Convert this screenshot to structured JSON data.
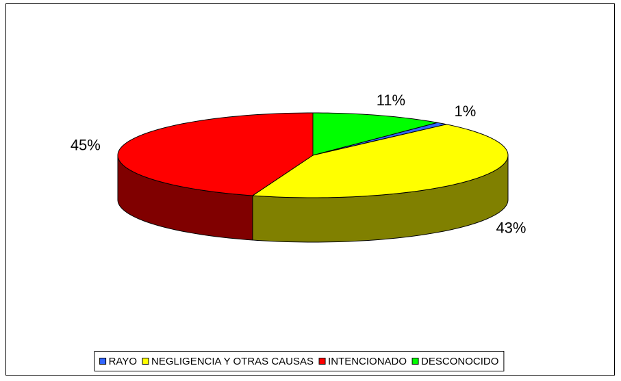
{
  "chart_data": {
    "type": "pie3d",
    "categories": [
      "RAYO",
      "NEGLIGENCIA Y OTRAS CAUSAS",
      "INTENCIONADO",
      "DESCONOCIDO"
    ],
    "values": [
      1,
      43,
      45,
      11
    ],
    "value_labels": [
      "1%",
      "43%",
      "45%",
      "11%"
    ],
    "colors": [
      "#3366ff",
      "#ffff00",
      "#ff0000",
      "#00ff00"
    ],
    "legend": "bottom"
  }
}
